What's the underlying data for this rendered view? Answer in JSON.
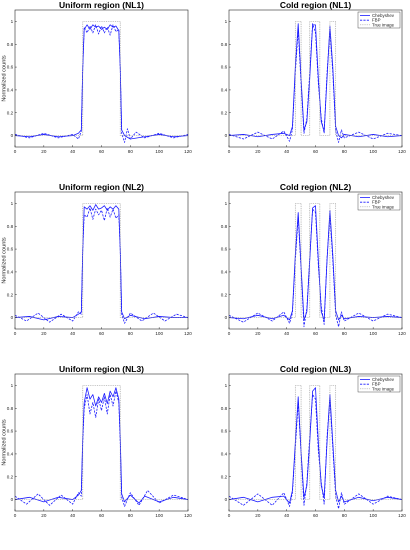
{
  "chart_data": [
    {
      "type": "line",
      "title": "Uniform region (NL1)",
      "ylabel": "Normalized counts",
      "xlim": [
        0,
        120
      ],
      "ylim": [
        -0.1,
        1.1
      ],
      "xticks": [
        0,
        20,
        40,
        60,
        80,
        100,
        120
      ],
      "yticks": [
        0,
        0.2,
        0.4,
        0.6,
        0.8,
        1
      ],
      "grid": false,
      "legend": false,
      "series": [
        {
          "name": "Chebyshev",
          "x": [
            0,
            10,
            20,
            30,
            40,
            44,
            46,
            47,
            48,
            50,
            52,
            54,
            56,
            58,
            60,
            62,
            64,
            66,
            68,
            70,
            72,
            73,
            74,
            76,
            80,
            90,
            100,
            110,
            120
          ],
          "y": [
            0,
            -0.01,
            0.01,
            -0.01,
            0,
            0.02,
            0.05,
            0.6,
            0.93,
            0.97,
            0.93,
            0.97,
            0.95,
            0.96,
            0.93,
            0.95,
            0.93,
            0.97,
            0.95,
            0.96,
            0.92,
            0.6,
            0.05,
            0.0,
            -0.03,
            -0.01,
            0.01,
            -0.01,
            0
          ]
        },
        {
          "name": "FBP",
          "x": [
            0,
            10,
            20,
            30,
            40,
            44,
            46,
            47,
            48,
            50,
            52,
            54,
            56,
            58,
            60,
            62,
            64,
            66,
            68,
            70,
            72,
            73,
            74,
            76,
            78,
            80,
            84,
            90,
            100,
            110,
            120
          ],
          "y": [
            0.01,
            -0.02,
            0.02,
            -0.02,
            0.01,
            -0.03,
            0.04,
            0.6,
            0.95,
            0.9,
            0.96,
            0.9,
            0.97,
            0.89,
            0.96,
            0.9,
            0.95,
            0.88,
            0.97,
            0.91,
            0.93,
            0.6,
            0.02,
            -0.06,
            0.06,
            -0.03,
            0.03,
            -0.02,
            0.02,
            -0.02,
            0.01
          ]
        },
        {
          "name": "True image",
          "x": [
            0,
            47,
            47,
            73,
            73,
            120
          ],
          "y": [
            0,
            0,
            1,
            1,
            0,
            0
          ]
        }
      ]
    },
    {
      "type": "line",
      "title": "Cold region (NL1)",
      "xlim": [
        0,
        120
      ],
      "ylim": [
        -0.1,
        1.1
      ],
      "xticks": [
        0,
        20,
        40,
        60,
        80,
        100,
        120
      ],
      "yticks": [
        0,
        0.2,
        0.4,
        0.6,
        0.8,
        1
      ],
      "grid": false,
      "legend": true,
      "legend_loc": "top-right",
      "series": [
        {
          "name": "Chebyshev",
          "x": [
            0,
            10,
            20,
            30,
            38,
            42,
            44,
            46,
            48,
            50,
            52,
            54,
            56,
            58,
            60,
            62,
            64,
            66,
            68,
            70,
            72,
            74,
            76,
            78,
            80,
            90,
            100,
            110,
            120
          ],
          "y": [
            0,
            0.01,
            -0.01,
            0.01,
            0.02,
            0.0,
            0.08,
            0.6,
            0.98,
            0.5,
            0.05,
            0.12,
            0.5,
            0.97,
            0.97,
            0.5,
            0.12,
            0.04,
            0.5,
            0.96,
            0.6,
            0.08,
            0.0,
            -0.02,
            0.01,
            -0.01,
            0.01,
            -0.01,
            0
          ]
        },
        {
          "name": "FBP",
          "x": [
            0,
            10,
            20,
            30,
            38,
            42,
            44,
            46,
            48,
            50,
            52,
            54,
            56,
            58,
            60,
            62,
            64,
            66,
            68,
            70,
            72,
            74,
            76,
            78,
            80,
            90,
            100,
            110,
            120
          ],
          "y": [
            0.01,
            -0.03,
            0.03,
            -0.03,
            0.04,
            -0.05,
            0.05,
            0.55,
            0.93,
            0.45,
            0.02,
            0.15,
            0.55,
            0.98,
            0.9,
            0.45,
            0.15,
            0.02,
            0.55,
            0.92,
            0.55,
            0.04,
            -0.06,
            0.05,
            -0.02,
            0.03,
            -0.03,
            0.02,
            0.0
          ]
        },
        {
          "name": "True image",
          "x": [
            0,
            46,
            46,
            50,
            50,
            56,
            56,
            63,
            63,
            70,
            70,
            74,
            74,
            120
          ],
          "y": [
            0,
            0,
            1,
            1,
            0,
            0,
            1,
            1,
            0,
            0,
            1,
            1,
            0,
            0
          ]
        }
      ]
    },
    {
      "type": "line",
      "title": "Uniform region (NL2)",
      "ylabel": "Normalized counts",
      "xlim": [
        0,
        120
      ],
      "ylim": [
        -0.1,
        1.1
      ],
      "xticks": [
        0,
        20,
        40,
        60,
        80,
        100,
        120
      ],
      "yticks": [
        0,
        0.2,
        0.4,
        0.6,
        0.8,
        1
      ],
      "grid": false,
      "legend": false,
      "series": [
        {
          "name": "Chebyshev",
          "x": [
            0,
            10,
            20,
            30,
            40,
            44,
            46,
            47,
            48,
            50,
            52,
            54,
            56,
            58,
            60,
            62,
            64,
            66,
            68,
            70,
            72,
            73,
            74,
            76,
            80,
            90,
            100,
            110,
            120
          ],
          "y": [
            0,
            0.01,
            -0.02,
            0.01,
            0.0,
            0.03,
            0.05,
            0.6,
            0.97,
            0.95,
            0.98,
            0.94,
            0.99,
            0.95,
            0.96,
            0.98,
            0.94,
            0.97,
            0.95,
            0.98,
            0.95,
            0.6,
            0.05,
            -0.01,
            0.02,
            -0.01,
            0.01,
            0.0,
            0.0
          ]
        },
        {
          "name": "FBP",
          "x": [
            0,
            8,
            16,
            24,
            32,
            40,
            44,
            46,
            47,
            48,
            50,
            52,
            54,
            56,
            58,
            60,
            62,
            64,
            66,
            68,
            70,
            72,
            73,
            74,
            76,
            80,
            88,
            96,
            104,
            112,
            120
          ],
          "y": [
            0.02,
            -0.03,
            0.04,
            -0.04,
            0.03,
            -0.03,
            0.05,
            0.03,
            0.6,
            0.9,
            0.88,
            0.96,
            0.86,
            0.95,
            0.9,
            0.94,
            0.85,
            0.96,
            0.88,
            0.95,
            0.87,
            0.9,
            0.6,
            0.03,
            -0.05,
            0.04,
            -0.03,
            0.04,
            -0.03,
            0.03,
            0.0
          ]
        },
        {
          "name": "True image",
          "x": [
            0,
            47,
            47,
            73,
            73,
            120
          ],
          "y": [
            0,
            0,
            1,
            1,
            0,
            0
          ]
        }
      ]
    },
    {
      "type": "line",
      "title": "Cold region (NL2)",
      "xlim": [
        0,
        120
      ],
      "ylim": [
        -0.1,
        1.1
      ],
      "xticks": [
        0,
        20,
        40,
        60,
        80,
        100,
        120
      ],
      "yticks": [
        0,
        0.2,
        0.4,
        0.6,
        0.8,
        1
      ],
      "grid": false,
      "legend": true,
      "legend_loc": "top-right",
      "series": [
        {
          "name": "Chebyshev",
          "x": [
            0,
            10,
            20,
            30,
            38,
            42,
            44,
            46,
            48,
            50,
            52,
            54,
            56,
            58,
            60,
            62,
            64,
            66,
            68,
            70,
            72,
            74,
            76,
            78,
            80,
            90,
            100,
            110,
            120
          ],
          "y": [
            0,
            -0.01,
            0.02,
            -0.01,
            0.02,
            -0.02,
            0.06,
            0.55,
            0.92,
            0.45,
            -0.02,
            0.05,
            0.5,
            0.96,
            0.98,
            0.5,
            0.05,
            -0.02,
            0.5,
            0.94,
            0.55,
            0.06,
            -0.02,
            0.02,
            -0.01,
            0.01,
            0.0,
            0.01,
            0.0
          ]
        },
        {
          "name": "FBP",
          "x": [
            0,
            10,
            20,
            30,
            38,
            42,
            44,
            46,
            48,
            50,
            52,
            54,
            56,
            58,
            60,
            62,
            64,
            66,
            68,
            70,
            72,
            74,
            76,
            78,
            80,
            90,
            100,
            110,
            120
          ],
          "y": [
            0.02,
            -0.04,
            0.04,
            -0.03,
            0.05,
            -0.05,
            0.04,
            0.5,
            0.88,
            0.42,
            -0.08,
            0.08,
            0.52,
            0.95,
            0.92,
            0.45,
            0.1,
            -0.06,
            0.52,
            0.9,
            0.5,
            0.02,
            -0.08,
            0.05,
            -0.03,
            0.04,
            -0.03,
            0.03,
            0.0
          ]
        },
        {
          "name": "True image",
          "x": [
            0,
            46,
            46,
            50,
            50,
            56,
            56,
            63,
            63,
            70,
            70,
            74,
            74,
            120
          ],
          "y": [
            0,
            0,
            1,
            1,
            0,
            0,
            1,
            1,
            0,
            0,
            1,
            1,
            0,
            0
          ]
        }
      ]
    },
    {
      "type": "line",
      "title": "Uniform region (NL3)",
      "ylabel": "Normalized counts",
      "xlim": [
        0,
        120
      ],
      "ylim": [
        -0.1,
        1.1
      ],
      "xticks": [
        0,
        20,
        40,
        60,
        80,
        100,
        120
      ],
      "yticks": [
        0,
        0.2,
        0.4,
        0.6,
        0.8,
        1
      ],
      "grid": false,
      "legend": false,
      "series": [
        {
          "name": "Chebyshev",
          "x": [
            0,
            10,
            20,
            30,
            40,
            44,
            46,
            47,
            48,
            50,
            52,
            54,
            56,
            58,
            60,
            62,
            64,
            66,
            68,
            70,
            72,
            73,
            74,
            76,
            80,
            86,
            90,
            100,
            110,
            120
          ],
          "y": [
            0,
            0.02,
            -0.02,
            0.02,
            0.0,
            0.04,
            0.08,
            0.55,
            0.85,
            0.98,
            0.88,
            0.92,
            0.82,
            0.9,
            0.85,
            0.93,
            0.84,
            0.95,
            0.9,
            0.98,
            0.88,
            0.55,
            0.05,
            -0.02,
            0.04,
            -0.03,
            0.03,
            -0.02,
            0.02,
            0.0
          ]
        },
        {
          "name": "FBP",
          "x": [
            0,
            8,
            16,
            24,
            32,
            40,
            44,
            46,
            47,
            48,
            50,
            52,
            54,
            56,
            58,
            60,
            62,
            64,
            66,
            68,
            70,
            72,
            73,
            74,
            76,
            80,
            86,
            92,
            100,
            110,
            120
          ],
          "y": [
            0.03,
            -0.04,
            0.05,
            -0.05,
            0.04,
            -0.04,
            0.06,
            0.03,
            0.5,
            0.8,
            0.92,
            0.75,
            0.85,
            0.72,
            0.88,
            0.78,
            0.9,
            0.75,
            0.92,
            0.82,
            0.95,
            0.85,
            0.5,
            0.02,
            -0.06,
            0.06,
            -0.05,
            0.08,
            -0.03,
            0.04,
            0.0
          ]
        },
        {
          "name": "True image",
          "x": [
            0,
            47,
            47,
            73,
            73,
            120
          ],
          "y": [
            0,
            0,
            1,
            1,
            0,
            0
          ]
        }
      ]
    },
    {
      "type": "line",
      "title": "Cold region (NL3)",
      "xlim": [
        0,
        120
      ],
      "ylim": [
        -0.1,
        1.1
      ],
      "xticks": [
        0,
        20,
        40,
        60,
        80,
        100,
        120
      ],
      "yticks": [
        0,
        0.2,
        0.4,
        0.6,
        0.8,
        1
      ],
      "grid": false,
      "legend": true,
      "legend_loc": "top-right",
      "series": [
        {
          "name": "Chebyshev",
          "x": [
            0,
            10,
            20,
            30,
            38,
            42,
            44,
            46,
            48,
            50,
            52,
            54,
            56,
            58,
            60,
            62,
            64,
            66,
            68,
            70,
            72,
            74,
            76,
            78,
            80,
            90,
            100,
            110,
            120
          ],
          "y": [
            0,
            0.02,
            -0.02,
            0.02,
            0.03,
            -0.03,
            0.08,
            0.5,
            0.9,
            0.42,
            0.02,
            0.12,
            0.5,
            0.95,
            0.98,
            0.5,
            0.12,
            0.02,
            0.5,
            0.92,
            0.5,
            0.08,
            -0.02,
            0.03,
            -0.02,
            0.02,
            -0.01,
            0.02,
            0.0
          ]
        },
        {
          "name": "FBP",
          "x": [
            0,
            10,
            20,
            30,
            38,
            42,
            44,
            46,
            48,
            50,
            52,
            54,
            56,
            58,
            60,
            62,
            64,
            66,
            68,
            70,
            72,
            74,
            76,
            78,
            80,
            90,
            100,
            110,
            120
          ],
          "y": [
            0.03,
            -0.05,
            0.05,
            -0.05,
            0.06,
            -0.06,
            0.06,
            0.45,
            0.85,
            0.4,
            -0.05,
            0.15,
            0.55,
            0.92,
            0.88,
            0.42,
            0.15,
            -0.04,
            0.55,
            0.88,
            0.45,
            0.03,
            -0.08,
            0.06,
            -0.04,
            0.05,
            -0.04,
            0.03,
            0.0
          ]
        },
        {
          "name": "True image",
          "x": [
            0,
            46,
            46,
            50,
            50,
            56,
            56,
            63,
            63,
            70,
            70,
            74,
            74,
            120
          ],
          "y": [
            0,
            0,
            1,
            1,
            0,
            0,
            1,
            1,
            0,
            0,
            1,
            1,
            0,
            0
          ]
        }
      ]
    }
  ],
  "colors": {
    "Chebyshev": "#1a1aff",
    "FBP": "#1a1aff",
    "True image": "#9a9a9a",
    "axes": "#262626",
    "text": "#222222"
  }
}
